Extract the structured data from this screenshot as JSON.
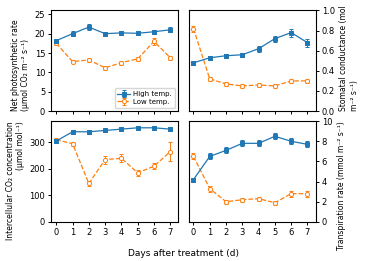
{
  "xlabel": "Days after treatment (d)",
  "chart_data": [
    {
      "type": "line",
      "x": [
        0,
        1,
        2,
        3,
        4,
        5,
        6,
        7
      ],
      "xlim": [
        -0.3,
        7.5
      ],
      "xticks": [
        0,
        1,
        2,
        3,
        4,
        5,
        6,
        7
      ],
      "ylim": [
        0,
        26
      ],
      "yticks": [
        0,
        5,
        10,
        15,
        20,
        25
      ],
      "ylabel": "Net photosynthetic rate (μmol CO₂ m⁻² s⁻¹)",
      "tick_labels": "y",
      "legend": "lower right",
      "series": [
        {
          "name": "High temp.",
          "marker": "square",
          "line_style": "solid",
          "values": [
            18.2,
            20.0,
            21.7,
            20.0,
            20.2,
            20.1,
            20.5,
            21.0
          ],
          "errors": [
            0.5,
            0.6,
            0.7,
            0.5,
            0.5,
            0.5,
            0.5,
            0.6
          ]
        },
        {
          "name": "Low temp.",
          "marker": "circle",
          "line_style": "dashed",
          "values": [
            17.5,
            12.8,
            13.2,
            11.2,
            12.5,
            13.5,
            18.0,
            13.8
          ],
          "errors": [
            0.5,
            0.5,
            0.5,
            0.5,
            0.5,
            0.6,
            0.8,
            0.5
          ]
        }
      ]
    },
    {
      "type": "line",
      "x": [
        0,
        1,
        2,
        3,
        4,
        5,
        6,
        7
      ],
      "xlim": [
        -0.3,
        7.5
      ],
      "xticks": [
        0,
        1,
        2,
        3,
        4,
        5,
        6,
        7
      ],
      "ylim": [
        0.0,
        1.0
      ],
      "yticks": [
        0.0,
        0.2,
        0.4,
        0.6,
        0.8,
        1.0
      ],
      "ylabel": "Stomatal conductance (mol m⁻² s⁻¹)",
      "tick_labels": "y",
      "series": [
        {
          "name": "High temp.",
          "marker": "square",
          "line_style": "solid",
          "values": [
            0.48,
            0.53,
            0.55,
            0.56,
            0.62,
            0.72,
            0.78,
            0.68
          ],
          "errors": [
            0.02,
            0.02,
            0.02,
            0.02,
            0.03,
            0.03,
            0.04,
            0.04
          ]
        },
        {
          "name": "Low temp.",
          "marker": "circle",
          "line_style": "dashed",
          "values": [
            0.82,
            0.32,
            0.27,
            0.25,
            0.26,
            0.25,
            0.3,
            0.3
          ],
          "errors": [
            0.03,
            0.02,
            0.02,
            0.02,
            0.02,
            0.02,
            0.02,
            0.02
          ]
        }
      ]
    },
    {
      "type": "line",
      "x": [
        0,
        1,
        2,
        3,
        4,
        5,
        6,
        7
      ],
      "xlim": [
        -0.3,
        7.5
      ],
      "xticks": [
        0,
        1,
        2,
        3,
        4,
        5,
        6,
        7
      ],
      "ylim": [
        0,
        380
      ],
      "yticks": [
        0,
        100,
        200,
        300
      ],
      "ylabel": "Intercellular CO₂ concentration (μmol mol⁻¹)",
      "series": [
        {
          "name": "High temp.",
          "marker": "square",
          "line_style": "solid",
          "values": [
            305,
            340,
            340,
            345,
            350,
            355,
            355,
            350
          ],
          "errors": [
            8,
            7,
            7,
            7,
            7,
            7,
            7,
            7
          ]
        },
        {
          "name": "Low temp.",
          "marker": "circle",
          "line_style": "dashed",
          "values": [
            310,
            295,
            145,
            235,
            240,
            185,
            210,
            265
          ],
          "errors": [
            8,
            8,
            10,
            15,
            15,
            12,
            12,
            35
          ]
        }
      ]
    },
    {
      "type": "line",
      "x": [
        0,
        1,
        2,
        3,
        4,
        5,
        6,
        7
      ],
      "xlim": [
        -0.3,
        7.5
      ],
      "xticks": [
        0,
        1,
        2,
        3,
        4,
        5,
        6,
        7
      ],
      "ylim": [
        0,
        10
      ],
      "yticks": [
        0,
        2,
        4,
        6,
        8,
        10
      ],
      "ylabel": "Transpiration rate (mmol m⁻² s⁻¹)",
      "series": [
        {
          "name": "High temp.",
          "marker": "square",
          "line_style": "solid",
          "values": [
            4.2,
            6.5,
            7.1,
            7.8,
            7.8,
            8.5,
            8.0,
            7.7
          ],
          "errors": [
            0.2,
            0.3,
            0.3,
            0.3,
            0.3,
            0.3,
            0.3,
            0.3
          ]
        },
        {
          "name": "Low temp.",
          "marker": "circle",
          "line_style": "dashed",
          "values": [
            6.5,
            3.3,
            2.0,
            2.2,
            2.3,
            1.9,
            2.8,
            2.8
          ],
          "errors": [
            0.3,
            0.3,
            0.2,
            0.2,
            0.2,
            0.2,
            0.3,
            0.3
          ]
        }
      ]
    }
  ]
}
